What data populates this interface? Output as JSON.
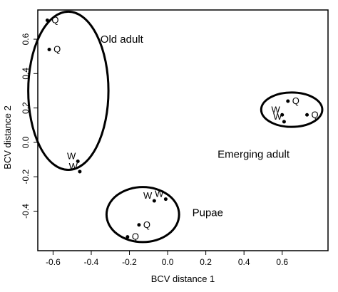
{
  "chart_data": {
    "type": "scatter",
    "title": "",
    "xlabel": "BCV distance 1",
    "ylabel": "BCV distance 2",
    "xlim": [
      -0.68,
      0.84
    ],
    "ylim": [
      -0.63,
      0.77
    ],
    "x_ticks": [
      "-0.6",
      "-0.4",
      "-0.2",
      "0.0",
      "0.2",
      "0.4",
      "0.6"
    ],
    "x_tick_values": [
      -0.6,
      -0.4,
      -0.2,
      0.0,
      0.2,
      0.4,
      0.6
    ],
    "y_ticks": [
      "-0.4",
      "-0.2",
      "0.0",
      "0.2",
      "0.4",
      "0.6"
    ],
    "y_tick_values": [
      -0.4,
      -0.2,
      0.0,
      0.2,
      0.4,
      0.6
    ],
    "grid": false,
    "series": [
      {
        "group": "Old adult",
        "points": [
          {
            "x": -0.63,
            "y": 0.71,
            "label": "Q"
          },
          {
            "x": -0.62,
            "y": 0.54,
            "label": "Q"
          },
          {
            "x": -0.47,
            "y": -0.11,
            "label": "W"
          },
          {
            "x": -0.46,
            "y": -0.17,
            "label": "W"
          }
        ]
      },
      {
        "group": "Pupae",
        "points": [
          {
            "x": -0.07,
            "y": -0.34,
            "label": "W"
          },
          {
            "x": -0.01,
            "y": -0.33,
            "label": "W"
          },
          {
            "x": -0.15,
            "y": -0.48,
            "label": "Q"
          },
          {
            "x": -0.21,
            "y": -0.55,
            "label": "Q"
          }
        ]
      },
      {
        "group": "Emerging adult",
        "points": [
          {
            "x": 0.63,
            "y": 0.24,
            "label": "Q"
          },
          {
            "x": 0.73,
            "y": 0.16,
            "label": "Q"
          },
          {
            "x": 0.6,
            "y": 0.16,
            "label": "W"
          },
          {
            "x": 0.61,
            "y": 0.12,
            "label": "W"
          }
        ]
      }
    ],
    "ellipses": [
      {
        "group": "Old adult",
        "cx": -0.52,
        "cy": 0.3,
        "rx": 0.21,
        "ry": 0.46
      },
      {
        "group": "Pupae",
        "cx": -0.13,
        "cy": -0.42,
        "rx": 0.19,
        "ry": 0.16
      },
      {
        "group": "Emerging adult",
        "cx": 0.65,
        "cy": 0.19,
        "rx": 0.16,
        "ry": 0.1
      }
    ],
    "group_labels": [
      {
        "text": "Old adult",
        "x": -0.24,
        "y": 0.58
      },
      {
        "text": "Pupae",
        "x": 0.21,
        "y": -0.43
      },
      {
        "text": "Emerging adult",
        "x": 0.45,
        "y": -0.09
      }
    ]
  }
}
